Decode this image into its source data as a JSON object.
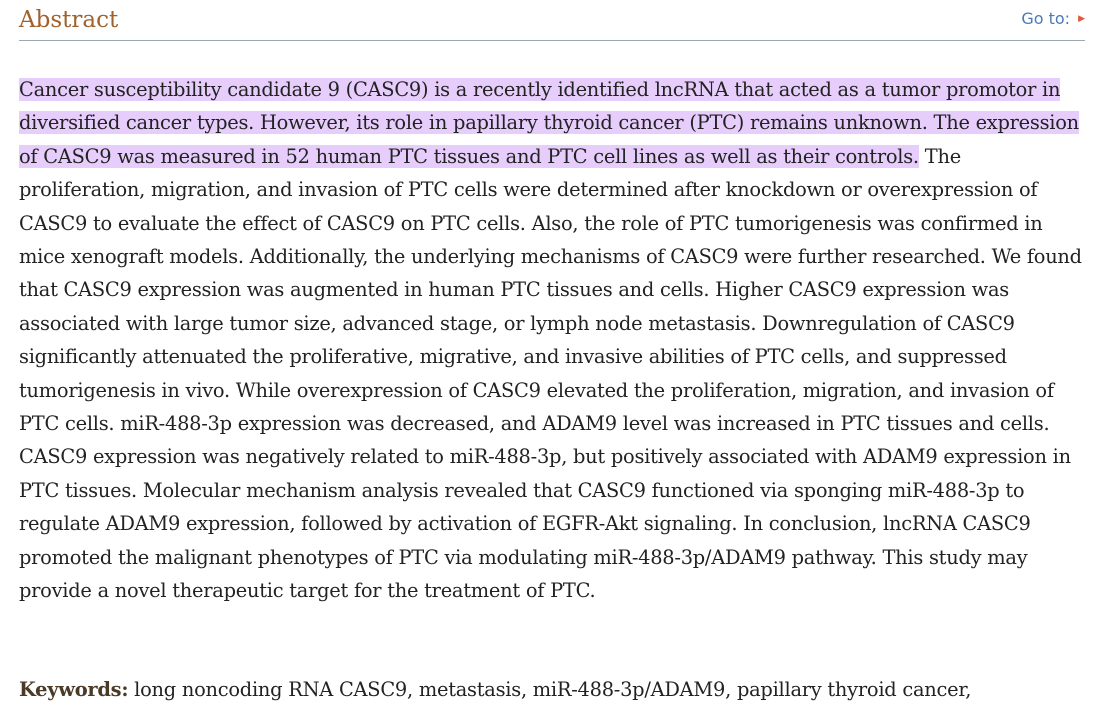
{
  "header": {
    "title": "Abstract",
    "goto_label": "Go to:",
    "goto_icon": "triangle-right-icon",
    "colors": {
      "title": "#a0612d",
      "link": "#4a7bb5",
      "arrow": "#e05a3a",
      "rule": "#9aa9b8"
    }
  },
  "abstract": {
    "highlighted": "Cancer susceptibility candidate 9 (CASC9) is a recently identified lncRNA that acted as a tumor promotor in diversified cancer types. However, its role in papillary thyroid cancer (PTC) remains unknown. The expression of CASC9 was measured in 52 human PTC tissues and PTC cell lines as well as their controls.",
    "rest": " The proliferation, migration, and invasion of PTC cells were determined after knockdown or overexpression of CASC9 to evaluate the effect of CASC9 on PTC cells. Also, the role of PTC tumorigenesis was confirmed in mice xenograft models. Additionally, the underlying mechanisms of CASC9 were further researched. We found that CASC9 expression was augmented in human PTC tissues and cells. Higher CASC9 expression was associated with large tumor size, advanced stage, or lymph node metastasis. Downregulation of CASC9 significantly attenuated the proliferative, migrative, and invasive abilities of PTC cells, and suppressed tumorigenesis in vivo. While overexpression of CASC9 elevated the proliferation, migration, and invasion of PTC cells. miR-488-3p expression was decreased, and ADAM9 level was increased in PTC tissues and cells. CASC9 expression was negatively related to miR-488-3p, but positively associated with ADAM9 expression in PTC tissues. Molecular mechanism analysis revealed that CASC9 functioned via sponging miR-488-3p to regulate ADAM9 expression, followed by activation of EGFR-Akt signaling. In conclusion, lncRNA CASC9 promoted the malignant phenotypes of PTC via modulating miR-488-3p/ADAM9 pathway. This study may provide a novel therapeutic target for the treatment of PTC.",
    "highlight_color": "#e6cdfb"
  },
  "keywords": {
    "label": "Keywords:",
    "text": " long noncoding RNA CASC9, metastasis, miR-488-3p/ADAM9, papillary thyroid cancer,"
  }
}
